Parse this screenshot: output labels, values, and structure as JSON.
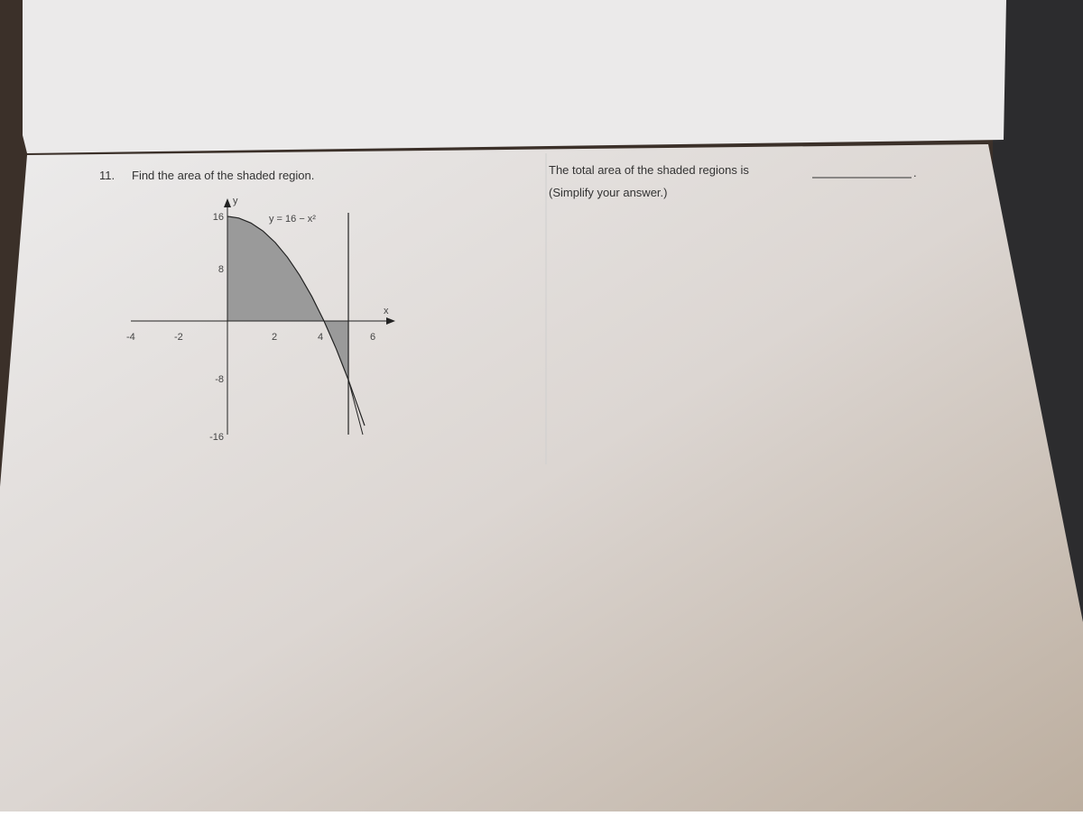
{
  "problem": {
    "number": "11.",
    "text": "Find the area of the shaded region."
  },
  "answer": {
    "prompt": "The total area of the shaded regions is",
    "end": ".",
    "hint": "(Simplify your answer.)"
  },
  "figure": {
    "x_axis_label": "x",
    "y_axis_label": "y",
    "curve_label": "y = 16 − x²",
    "x_tick_labels": [
      "-4",
      "-2",
      "2",
      "4",
      "6"
    ],
    "y_tick_labels": [
      "16",
      "8",
      "-8",
      "-16"
    ]
  }
}
